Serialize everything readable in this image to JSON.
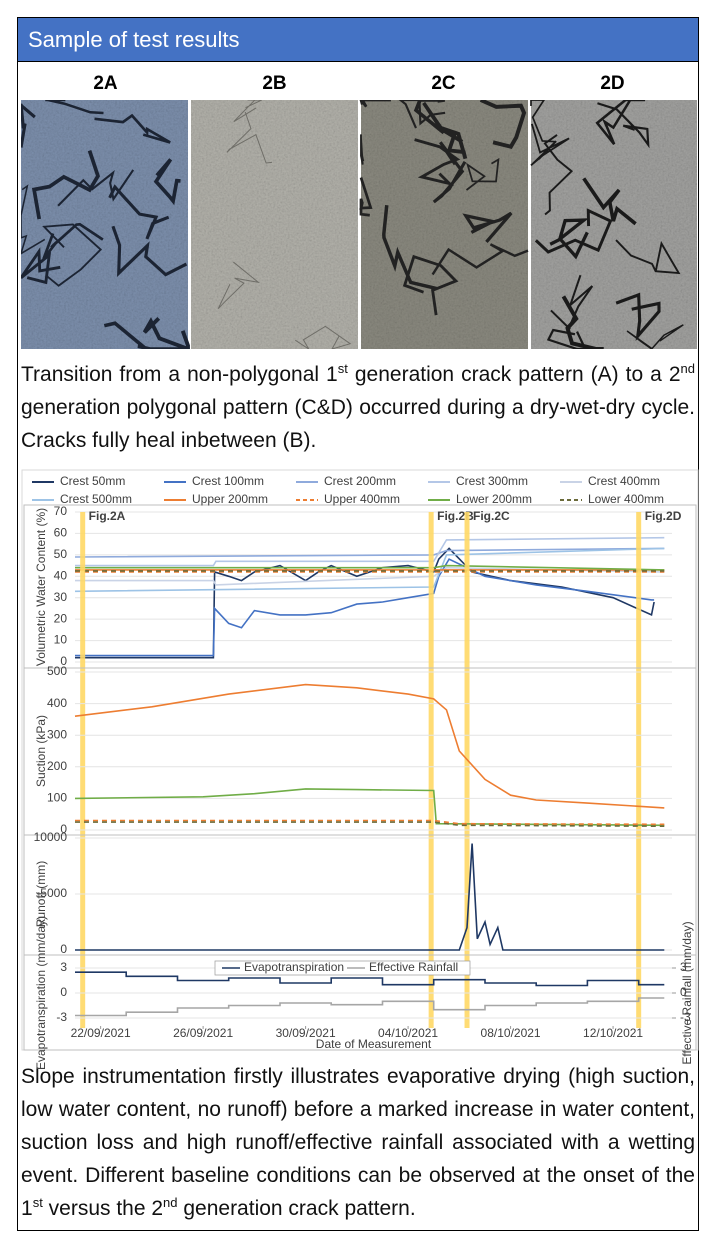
{
  "header": {
    "title": "Sample of test results"
  },
  "photos": {
    "labels": [
      "2A",
      "2B",
      "2C",
      "2D"
    ]
  },
  "caption_top": [
    "Transition from a non-polygonal 1",
    "st",
    " generation crack pattern (A) to a 2",
    "nd",
    " generation polygonal pattern (C&D) occurred during a dry-wet-dry cycle. Cracks fully heal inbetween (B)."
  ],
  "chart_data": [
    {
      "type": "line",
      "ylabel": "Volumetric Water Content (%)",
      "xlim": [
        -1,
        22.3
      ],
      "ylim": [
        0,
        70
      ],
      "yticks": [
        0,
        10,
        20,
        30,
        40,
        50,
        60,
        70
      ],
      "legend": "top",
      "annotations": [
        {
          "text": "Fig.2A",
          "x": -0.7
        },
        {
          "text": "Fig.2B",
          "x": 12.9
        },
        {
          "text": "Fig.2C",
          "x": 14.3
        },
        {
          "text": "Fig.2D",
          "x": 21
        }
      ],
      "series": [
        {
          "name": "Crest 50mm",
          "color": "#1f3864",
          "x": [
            -1,
            4.4,
            4.45,
            5,
            5.5,
            6,
            7,
            8,
            8.5,
            9,
            10,
            11,
            12,
            13,
            13.2,
            13.6,
            14.5,
            16,
            18,
            20,
            21.5,
            21.6
          ],
          "values": [
            2,
            2,
            42,
            40,
            38,
            42,
            45,
            38,
            42,
            45,
            40,
            44,
            45,
            42,
            48,
            53,
            42,
            38,
            35,
            30,
            22,
            28
          ]
        },
        {
          "name": "Crest 100mm",
          "color": "#4472c4",
          "x": [
            -1,
            4.4,
            4.45,
            5,
            5.5,
            6,
            7,
            8,
            9,
            10,
            11,
            12,
            13,
            13.2,
            13.6,
            15,
            17,
            19,
            21.5,
            21.6
          ],
          "values": [
            3,
            3,
            25,
            18,
            16,
            24,
            22,
            22,
            23,
            27,
            28,
            30,
            32,
            40,
            48,
            40,
            36,
            33,
            29,
            29
          ]
        },
        {
          "name": "Crest 200mm",
          "color": "#8faadc",
          "x": [
            -1,
            13,
            13.5,
            22
          ],
          "values": [
            49,
            50,
            52,
            53
          ]
        },
        {
          "name": "Crest 300mm",
          "color": "#b4c7e7",
          "x": [
            -1,
            4.4,
            4.5,
            13,
            13.5,
            22
          ],
          "values": [
            45,
            45,
            47,
            47,
            57,
            58
          ]
        },
        {
          "name": "Crest 400mm",
          "color": "#c9d3e6",
          "x": [
            -1,
            4.4,
            4.5,
            13,
            13.5,
            22
          ],
          "values": [
            38,
            38,
            36,
            40,
            44,
            42
          ]
        },
        {
          "name": "Crest 500mm",
          "color": "#9dc3e6",
          "x": [
            -1,
            13,
            13.5,
            22
          ],
          "values": [
            33,
            35,
            50,
            53
          ]
        },
        {
          "name": "Upper 200mm",
          "color": "#ed7d31",
          "x": [
            -1,
            22
          ],
          "values": [
            43,
            43
          ]
        },
        {
          "name": "Upper 400mm",
          "color": "#ed7d31",
          "dash": true,
          "x": [
            -1,
            22
          ],
          "values": [
            42,
            42
          ]
        },
        {
          "name": "Lower 200mm",
          "color": "#70ad47",
          "x": [
            -1,
            13,
            13.5,
            22
          ],
          "values": [
            44,
            44,
            45,
            43
          ]
        },
        {
          "name": "Lower 400mm",
          "color": "#6b6b3a",
          "dash": true,
          "x": [
            -1,
            22
          ],
          "values": [
            42.5,
            42.5
          ]
        }
      ]
    },
    {
      "type": "line",
      "ylabel": "Suction (kPa)",
      "xlim": [
        -1,
        22.3
      ],
      "ylim": [
        0,
        500
      ],
      "yticks": [
        0,
        100,
        200,
        300,
        400,
        500
      ],
      "series": [
        {
          "color": "#ed7d31",
          "x": [
            -1,
            2,
            5,
            8,
            10,
            12,
            13,
            13.5,
            14,
            15,
            16,
            17,
            19,
            22
          ],
          "values": [
            360,
            390,
            430,
            460,
            450,
            430,
            415,
            380,
            250,
            160,
            110,
            95,
            85,
            70
          ]
        },
        {
          "color": "#70ad47",
          "x": [
            -1,
            4,
            6,
            8,
            10,
            13,
            13.1,
            22
          ],
          "values": [
            100,
            105,
            115,
            130,
            128,
            125,
            20,
            15
          ]
        },
        {
          "color": "#ed7d31",
          "dash": true,
          "x": [
            -1,
            13,
            14,
            22
          ],
          "values": [
            30,
            30,
            20,
            18
          ]
        },
        {
          "color": "#6b6b3a",
          "dash": true,
          "x": [
            -1,
            13,
            14,
            22
          ],
          "values": [
            25,
            25,
            15,
            12
          ]
        }
      ]
    },
    {
      "type": "line",
      "ylabel": "Runoff (mm)",
      "xlim": [
        -1,
        22.3
      ],
      "ylim": [
        0,
        10000
      ],
      "yticks": [
        0,
        5000,
        10000
      ],
      "series": [
        {
          "color": "#1f3864",
          "x": [
            -1,
            14,
            14.3,
            14.5,
            14.7,
            15,
            15.2,
            15.5,
            15.7,
            16,
            22
          ],
          "values": [
            0,
            0,
            2000,
            9500,
            1000,
            2500,
            500,
            2000,
            0,
            0,
            0
          ]
        }
      ]
    },
    {
      "type": "line",
      "ylabel": "Evapotranspiration (mm/day)",
      "y2label": "Effective Rainfall (mm/day)",
      "xlabel": "Date of Measurement",
      "xlim": [
        -1,
        22.3
      ],
      "ylim": [
        -3,
        3
      ],
      "yticks": [
        -3,
        0,
        3
      ],
      "y2lim": [
        -3,
        3
      ],
      "y2ticks": [
        -3,
        0,
        3
      ],
      "legend": "inside-top",
      "xticks": [
        {
          "value": 0,
          "label": "22/09/2021"
        },
        {
          "value": 4,
          "label": "26/09/2021"
        },
        {
          "value": 8,
          "label": "30/09/2021"
        },
        {
          "value": 12,
          "label": "04/10/2021"
        },
        {
          "value": 16,
          "label": "08/10/2021"
        },
        {
          "value": 20,
          "label": "12/10/2021"
        }
      ],
      "series": [
        {
          "name": "Evapotranspiration",
          "color": "#1f3864",
          "x": [
            -1,
            1,
            1,
            3,
            3,
            5,
            5,
            7,
            7,
            9,
            9,
            11,
            11,
            13,
            13,
            15,
            15,
            17,
            17,
            19,
            19,
            21,
            21,
            22
          ],
          "values": [
            2.5,
            2.5,
            2,
            2,
            1.5,
            1.5,
            1.8,
            1.8,
            1.2,
            1.2,
            1.8,
            1.8,
            1,
            1,
            1.6,
            1.6,
            1.2,
            1.2,
            0.9,
            0.9,
            1.5,
            1.5,
            1,
            1
          ]
        },
        {
          "name": "Effective Rainfall",
          "color": "#a6a6a6",
          "axis": "y2",
          "x": [
            -1,
            1,
            1,
            3,
            3,
            5,
            5,
            7,
            7,
            9,
            9,
            11,
            11,
            13,
            13,
            15,
            15,
            17,
            17,
            19,
            19,
            21,
            21,
            22
          ],
          "values": [
            -2.7,
            -2.7,
            -2.3,
            -2.3,
            -1.8,
            -1.8,
            -1.5,
            -1.5,
            -1.2,
            -1.2,
            -1.4,
            -1.4,
            -1,
            -1,
            -2,
            -2,
            -1.5,
            -1.5,
            -1.2,
            -1.2,
            -1,
            -1,
            -0.6,
            -0.6
          ]
        }
      ]
    }
  ],
  "caption_bottom": [
    "Slope instrumentation firstly illustrates evaporative drying (high suction, low water content, no runoff) before a marked increase in water content, suction loss and high runoff/effective rainfall associated with a wetting event. Different baseline conditions can be observed at the onset of the 1",
    "st",
    " versus the 2",
    "nd",
    " generation crack pattern."
  ]
}
